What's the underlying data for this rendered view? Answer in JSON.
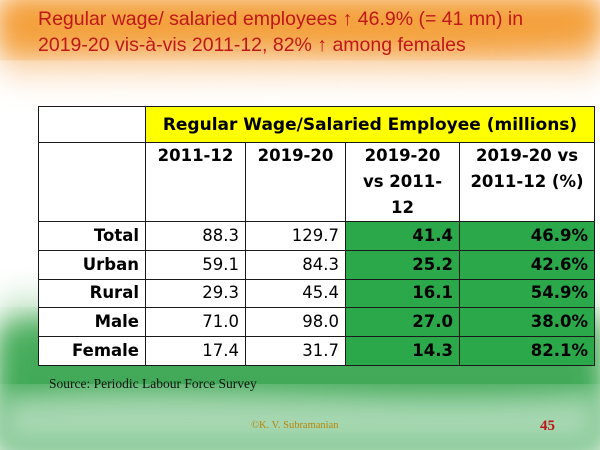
{
  "title": {
    "line1": "Regular wage/ salaried employees ↑ 46.9% (= 41 mn) in",
    "line2": "2019-20 vis-à-vis 2011-12, 82% ↑ among females"
  },
  "table": {
    "header": "Regular Wage/Salaried Employee (millions)",
    "columns": [
      "2011-12",
      "2019-20",
      "2019-20 vs 2011-12",
      "2019-20 vs 2011-12 (%)"
    ],
    "rows": [
      {
        "label": "Total",
        "v1": "88.3",
        "v2": "129.7",
        "diff": "41.4",
        "pct": "46.9%"
      },
      {
        "label": "Urban",
        "v1": "59.1",
        "v2": "84.3",
        "diff": "25.2",
        "pct": "42.6%"
      },
      {
        "label": "Rural",
        "v1": "29.3",
        "v2": "45.4",
        "diff": "16.1",
        "pct": "54.9%"
      },
      {
        "label": "Male",
        "v1": "71.0",
        "v2": "98.0",
        "diff": "27.0",
        "pct": "38.0%"
      },
      {
        "label": "Female",
        "v1": "17.4",
        "v2": "31.7",
        "diff": "14.3",
        "pct": "82.1%"
      }
    ]
  },
  "source": "Source: Periodic Labour Force Survey",
  "footer": "©K. V. Subramanian",
  "page_number": "45",
  "colors": {
    "title": "#c0171b",
    "header_bg": "#ffff00",
    "change_bg": "#2aa84a",
    "saffron": "#f39a2c",
    "green": "#2e9e49"
  }
}
